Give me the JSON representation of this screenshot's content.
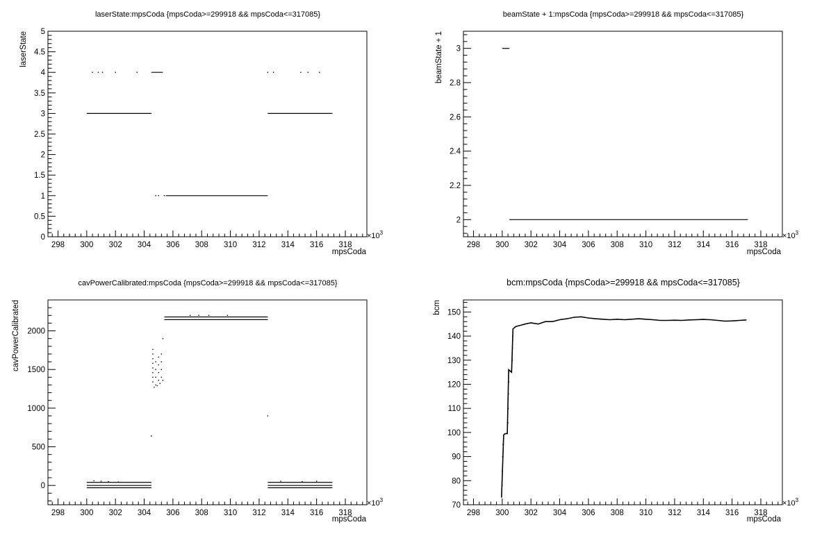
{
  "chart_data": [
    {
      "type": "scatter",
      "title": "laserState:mpsCoda {mpsCoda>=299918 && mpsCoda<=317085}",
      "xlabel": "mpsCoda",
      "ylabel": "laserState",
      "x_exponent_label": "×10",
      "x_exponent_power": "3",
      "xlim": [
        297.3,
        319.5
      ],
      "ylim": [
        0,
        5
      ],
      "x_ticks": [
        298,
        300,
        302,
        304,
        306,
        308,
        310,
        312,
        314,
        316,
        318
      ],
      "y_ticks": [
        0,
        0.5,
        1,
        1.5,
        2,
        2.5,
        3,
        3.5,
        4,
        4.5,
        5
      ],
      "y_tick_labels": [
        "0",
        "0.5",
        "1",
        "1.5",
        "2",
        "2.5",
        "3",
        "3.5",
        "4",
        "4.5",
        "5"
      ],
      "segments": [
        {
          "x0": 300.0,
          "x1": 304.5,
          "y": 3
        },
        {
          "x0": 304.5,
          "x1": 305.3,
          "y": 4
        },
        {
          "x0": 305.5,
          "x1": 312.6,
          "y": 1
        },
        {
          "x0": 312.6,
          "x1": 317.1,
          "y": 3
        }
      ],
      "points": [
        {
          "x": 300.4,
          "y": 4
        },
        {
          "x": 300.8,
          "y": 4
        },
        {
          "x": 301.1,
          "y": 4
        },
        {
          "x": 302.0,
          "y": 4
        },
        {
          "x": 303.5,
          "y": 4
        },
        {
          "x": 312.6,
          "y": 4
        },
        {
          "x": 313.0,
          "y": 4
        },
        {
          "x": 314.9,
          "y": 4
        },
        {
          "x": 315.4,
          "y": 4
        },
        {
          "x": 316.2,
          "y": 4
        },
        {
          "x": 304.8,
          "y": 1
        },
        {
          "x": 305.0,
          "y": 1
        },
        {
          "x": 305.4,
          "y": 1
        }
      ]
    },
    {
      "type": "scatter",
      "title": "beamState + 1:mpsCoda {mpsCoda>=299918 && mpsCoda<=317085}",
      "xlabel": "mpsCoda",
      "ylabel": "beamState + 1",
      "x_exponent_label": "×10",
      "x_exponent_power": "3",
      "xlim": [
        297.3,
        319.5
      ],
      "ylim": [
        1.9,
        3.1
      ],
      "x_ticks": [
        298,
        300,
        302,
        304,
        306,
        308,
        310,
        312,
        314,
        316,
        318
      ],
      "y_ticks": [
        2,
        2.2,
        2.4,
        2.6,
        2.8,
        3
      ],
      "y_tick_labels": [
        "2",
        "2.2",
        "2.4",
        "2.6",
        "2.8",
        "3"
      ],
      "segments": [
        {
          "x0": 300.0,
          "x1": 300.5,
          "y": 3
        },
        {
          "x0": 300.5,
          "x1": 317.1,
          "y": 2
        }
      ],
      "points": []
    },
    {
      "type": "scatter",
      "title": "cavPowerCalibrated:mpsCoda {mpsCoda>=299918 && mpsCoda<=317085}",
      "xlabel": "mpsCoda",
      "ylabel": "cavPowerCalibrated",
      "x_exponent_label": "×10",
      "x_exponent_power": "3",
      "xlim": [
        297.3,
        319.5
      ],
      "ylim": [
        -250,
        2400
      ],
      "x_ticks": [
        298,
        300,
        302,
        304,
        306,
        308,
        310,
        312,
        314,
        316,
        318
      ],
      "y_ticks": [
        0,
        500,
        1000,
        1500,
        2000
      ],
      "y_tick_labels": [
        "0",
        "500",
        "1000",
        "1500",
        "2000"
      ],
      "segments": [
        {
          "x0": 300.0,
          "x1": 304.5,
          "y": 40
        },
        {
          "x0": 300.0,
          "x1": 304.5,
          "y": 0
        },
        {
          "x0": 300.0,
          "x1": 304.5,
          "y": -30
        },
        {
          "x0": 305.4,
          "x1": 312.6,
          "y": 2180
        },
        {
          "x0": 305.4,
          "x1": 312.6,
          "y": 2145
        },
        {
          "x0": 312.6,
          "x1": 317.1,
          "y": 40
        },
        {
          "x0": 312.6,
          "x1": 317.1,
          "y": 0
        },
        {
          "x0": 312.6,
          "x1": 317.1,
          "y": -30
        }
      ],
      "points": [
        {
          "x": 300.5,
          "y": 60
        },
        {
          "x": 301.0,
          "y": 55
        },
        {
          "x": 301.5,
          "y": 50
        },
        {
          "x": 302.2,
          "y": 45
        },
        {
          "x": 313.5,
          "y": 55
        },
        {
          "x": 315.0,
          "y": 50
        },
        {
          "x": 316.0,
          "y": 55
        },
        {
          "x": 304.5,
          "y": 640
        },
        {
          "x": 312.6,
          "y": 900
        },
        {
          "x": 305.3,
          "y": 1900
        },
        {
          "x": 307.2,
          "y": 2200
        },
        {
          "x": 307.8,
          "y": 2200
        },
        {
          "x": 308.5,
          "y": 2200
        },
        {
          "x": 309.8,
          "y": 2200
        },
        {
          "x": 304.6,
          "y": 1760
        },
        {
          "x": 304.6,
          "y": 1700
        },
        {
          "x": 304.6,
          "y": 1640
        },
        {
          "x": 304.6,
          "y": 1580
        },
        {
          "x": 304.6,
          "y": 1520
        },
        {
          "x": 304.6,
          "y": 1460
        },
        {
          "x": 304.6,
          "y": 1400
        },
        {
          "x": 304.6,
          "y": 1340
        },
        {
          "x": 304.8,
          "y": 1600
        },
        {
          "x": 304.8,
          "y": 1500
        },
        {
          "x": 304.8,
          "y": 1400
        },
        {
          "x": 304.8,
          "y": 1300
        },
        {
          "x": 305.0,
          "y": 1660
        },
        {
          "x": 305.0,
          "y": 1560
        },
        {
          "x": 305.0,
          "y": 1460
        },
        {
          "x": 305.0,
          "y": 1360
        },
        {
          "x": 305.2,
          "y": 1700
        },
        {
          "x": 305.2,
          "y": 1600
        },
        {
          "x": 305.2,
          "y": 1500
        },
        {
          "x": 305.2,
          "y": 1400
        },
        {
          "x": 304.7,
          "y": 1270
        },
        {
          "x": 304.9,
          "y": 1290
        },
        {
          "x": 305.1,
          "y": 1320
        },
        {
          "x": 305.3,
          "y": 1360
        }
      ]
    },
    {
      "type": "line",
      "title": "bcm:mpsCoda {mpsCoda>=299918 && mpsCoda<=317085}",
      "xlabel": "mpsCoda",
      "ylabel": "bcm",
      "x_exponent_label": "×10",
      "x_exponent_power": "3",
      "xlim": [
        297.3,
        319.5
      ],
      "ylim": [
        70,
        155
      ],
      "x_ticks": [
        298,
        300,
        302,
        304,
        306,
        308,
        310,
        312,
        314,
        316,
        318
      ],
      "y_ticks": [
        70,
        80,
        90,
        100,
        110,
        120,
        130,
        140,
        150
      ],
      "y_tick_labels": [
        "70",
        "80",
        "90",
        "100",
        "110",
        "120",
        "130",
        "140",
        "150"
      ],
      "series": [
        {
          "x": [
            299.95,
            300.1,
            300.2,
            300.35,
            300.45,
            300.55,
            300.65,
            300.75,
            300.85,
            300.95,
            301.3,
            301.6,
            302.0,
            302.5,
            303.0,
            303.5,
            304.0,
            304.5,
            305.0,
            305.5,
            306.0,
            306.5,
            307.0,
            307.5,
            308.0,
            308.5,
            309.0,
            309.5,
            310.0,
            310.5,
            311.0,
            311.5,
            312.0,
            312.5,
            313.0,
            313.5,
            314.0,
            314.5,
            315.0,
            315.5,
            316.0,
            316.5,
            317.0
          ],
          "y": [
            73,
            99,
            99.5,
            99.5,
            126,
            125.5,
            125,
            143,
            143.5,
            144,
            144.5,
            145,
            145.5,
            145,
            146,
            146,
            146.8,
            147.2,
            147.8,
            148,
            147.5,
            147.2,
            147,
            146.8,
            147,
            146.8,
            147,
            147.2,
            147,
            146.8,
            146.5,
            146.5,
            146.6,
            146.5,
            146.7,
            146.8,
            146.9,
            146.8,
            146.5,
            146.2,
            146.3,
            146.5,
            146.7
          ]
        }
      ],
      "points": [
        {
          "x": 300.0,
          "y": 78
        },
        {
          "x": 300.0,
          "y": 84
        },
        {
          "x": 300.02,
          "y": 90
        },
        {
          "x": 300.05,
          "y": 95
        },
        {
          "x": 300.4,
          "y": 104
        },
        {
          "x": 300.42,
          "y": 110
        },
        {
          "x": 300.44,
          "y": 116
        },
        {
          "x": 300.46,
          "y": 121
        },
        {
          "x": 300.7,
          "y": 130
        },
        {
          "x": 300.72,
          "y": 135
        },
        {
          "x": 300.74,
          "y": 140
        }
      ]
    }
  ]
}
